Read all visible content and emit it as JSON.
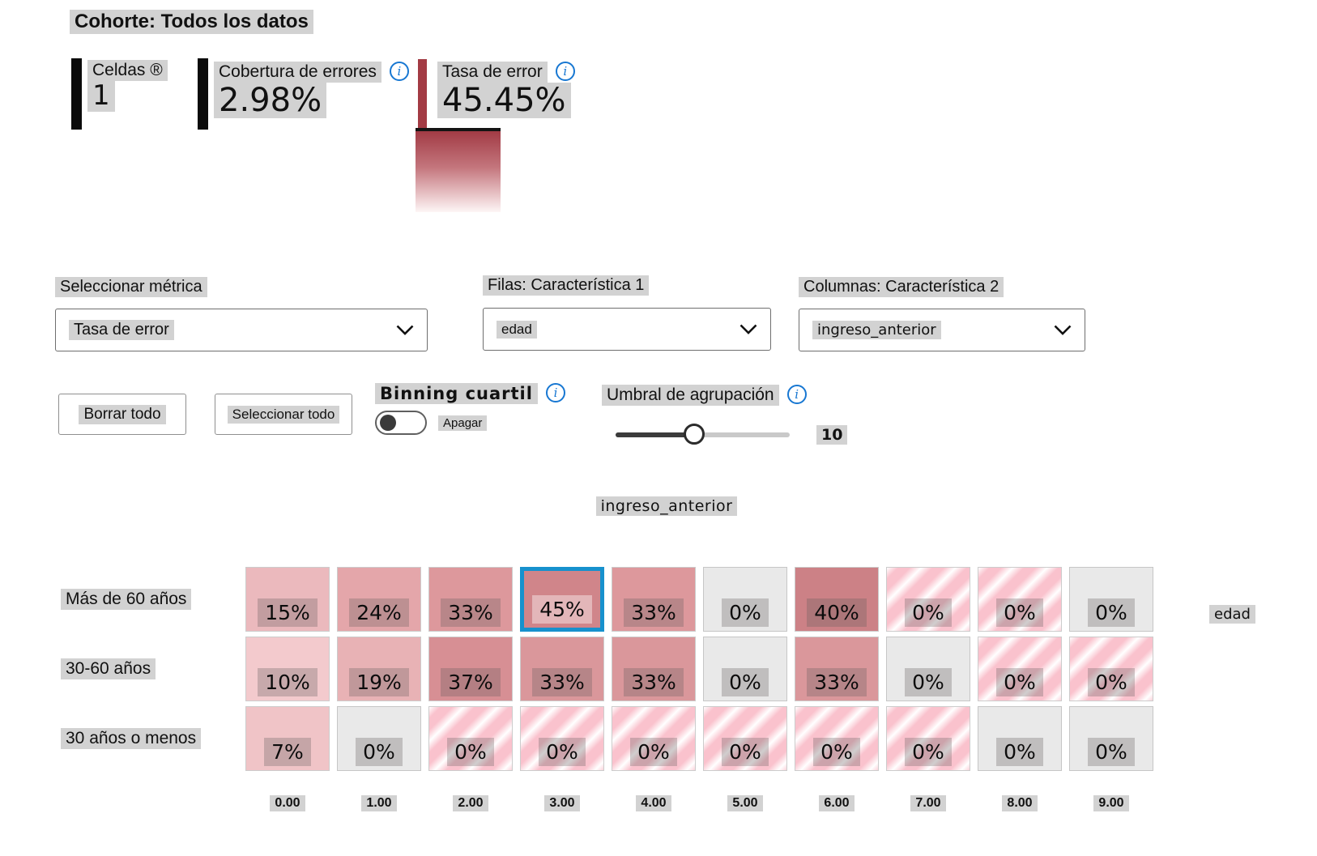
{
  "cohort": {
    "label": "Cohorte: Todos los datos"
  },
  "metrics": {
    "cells": {
      "label": "Celdas ®",
      "value": "1"
    },
    "coverage": {
      "label": "Cobertura de errores",
      "value": "2.98%"
    },
    "error_rate": {
      "label": "Tasa de error",
      "value": "45.45%"
    }
  },
  "selectors": {
    "metric": {
      "label": "Seleccionar métrica",
      "value": "Tasa de error"
    },
    "rows": {
      "label": "Filas: Característica 1",
      "value": "edad"
    },
    "columns": {
      "label": "Columnas: Característica 2",
      "value": "ingreso_anterior"
    }
  },
  "actions": {
    "clear_all": "Borrar todo",
    "select_all": "Seleccionar todo"
  },
  "quantile_binning": {
    "label": "Binning cuartil",
    "state_label": "Apagar",
    "enabled": false
  },
  "binning_threshold": {
    "label": "Umbral de agrupación",
    "value": "10",
    "fill_percent": 45
  },
  "colors": {
    "accent_bar": "#a33b44",
    "selected_cell_border": "#1791cd",
    "info_icon": "#1777d2",
    "gradient_top": "#a23b45",
    "gradient_bottom": "#fdf6f6",
    "text_highlight": "#d2d2d2"
  },
  "chart_data": {
    "type": "heatmap",
    "title": "ingreso_anterior",
    "x_axis_label": "ingreso_anterior",
    "y_axis_label": "edad",
    "columns": [
      "0.00",
      "1.00",
      "2.00",
      "3.00",
      "4.00",
      "5.00",
      "6.00",
      "7.00",
      "8.00",
      "9.00"
    ],
    "rows": [
      "Más de 60 años",
      "30-60 años",
      "30 años o menos"
    ],
    "values_percent": [
      [
        15,
        24,
        33,
        45,
        33,
        0,
        40,
        0,
        0,
        0
      ],
      [
        10,
        19,
        37,
        33,
        33,
        0,
        33,
        0,
        0,
        0
      ],
      [
        7,
        0,
        0,
        0,
        0,
        0,
        0,
        0,
        0,
        0
      ]
    ],
    "selected_cell": {
      "row": 0,
      "col": 3,
      "label": "45%"
    },
    "cells": [
      [
        {
          "label": "15%",
          "fill": "#ebb9bd"
        },
        {
          "label": "24%",
          "fill": "#e4a6aa"
        },
        {
          "label": "33%",
          "fill": "#dd989c"
        },
        {
          "label": "45%",
          "fill": "#d0858a",
          "selected": true
        },
        {
          "label": "33%",
          "fill": "#dd989c"
        },
        {
          "label": "0%",
          "fill": "gray"
        },
        {
          "label": "40%",
          "fill": "#cc8186"
        },
        {
          "label": "0%",
          "fill": "striped"
        },
        {
          "label": "0%",
          "fill": "striped"
        },
        {
          "label": "0%",
          "fill": "gray"
        }
      ],
      [
        {
          "label": "10%",
          "fill": "#f3cacd"
        },
        {
          "label": "19%",
          "fill": "#e8b2b5"
        },
        {
          "label": "37%",
          "fill": "#d78f94"
        },
        {
          "label": "33%",
          "fill": "#da979b"
        },
        {
          "label": "33%",
          "fill": "#da979b"
        },
        {
          "label": "0%",
          "fill": "gray"
        },
        {
          "label": "33%",
          "fill": "#da979b"
        },
        {
          "label": "0%",
          "fill": "gray"
        },
        {
          "label": "0%",
          "fill": "striped"
        },
        {
          "label": "0%",
          "fill": "striped"
        }
      ],
      [
        {
          "label": "7%",
          "fill": "#f0c4c7"
        },
        {
          "label": "0%",
          "fill": "gray"
        },
        {
          "label": "0%",
          "fill": "striped"
        },
        {
          "label": "0%",
          "fill": "striped"
        },
        {
          "label": "0%",
          "fill": "striped"
        },
        {
          "label": "0%",
          "fill": "striped"
        },
        {
          "label": "0%",
          "fill": "striped"
        },
        {
          "label": "0%",
          "fill": "striped"
        },
        {
          "label": "0%",
          "fill": "gray"
        },
        {
          "label": "0%",
          "fill": "gray"
        }
      ]
    ]
  }
}
